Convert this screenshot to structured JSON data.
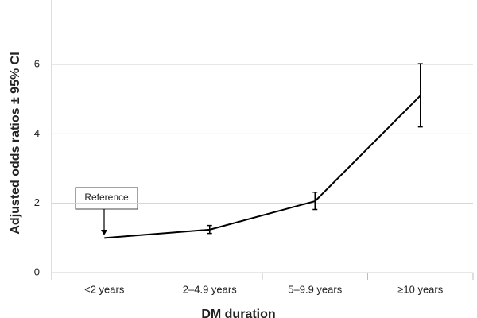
{
  "chart_data": {
    "type": "line",
    "x_label": "DM duration",
    "y_label": "Adjusted odds ratios ± 95% CI",
    "annotation": "Reference",
    "categories": [
      "<2 years",
      "2–4.9 years",
      "5–9.9 years",
      "≥10 years"
    ],
    "values": [
      1.0,
      1.24,
      2.06,
      5.1
    ],
    "lower": [
      null,
      1.13,
      1.82,
      4.2
    ],
    "upper": [
      null,
      1.36,
      2.32,
      6.02
    ],
    "color": "#000000",
    "ylim": [
      0,
      8
    ],
    "yticks": [
      0,
      2,
      4,
      6
    ],
    "grid": true
  }
}
